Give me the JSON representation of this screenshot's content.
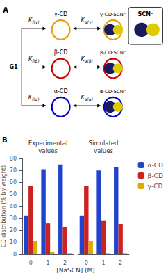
{
  "chart_data": [
    {
      "type": "diagram",
      "annotations": [
        "A",
        "G1",
        "SCN⁻"
      ],
      "colors": [
        "#1a1a5e",
        "#DDCC00"
      ],
      "series": [
        {
          "name": "γ-CD",
          "color": "#E8A000",
          "annotations": [
            "Kf(γ)",
            "Ka(γ)",
            "γ-CD·SCN⁻"
          ]
        },
        {
          "name": "β-CD",
          "color": "#CC0000",
          "annotations": [
            "Kf(β)",
            "Ka(β)",
            "β-CD·SCN⁻"
          ]
        },
        {
          "name": "α-CD",
          "color": "#0000CC",
          "annotations": [
            "Kf(α)",
            "Ka(α)",
            "α-CD·SCN⁻"
          ]
        }
      ]
    },
    {
      "type": "bar",
      "title": "Experimental\nvalues",
      "annotations": [
        "B"
      ],
      "xlabel": "[NaSCN] (M)",
      "ylabel": "CD distribution (% by weight)",
      "categories": [
        "0",
        "1",
        "2"
      ],
      "series": [
        {
          "name": "α-CD",
          "color": "#2244CC",
          "values": [
            32,
            71,
            75
          ]
        },
        {
          "name": "β-CD",
          "color": "#CC2222",
          "values": [
            57,
            26,
            23
          ]
        },
        {
          "name": "γ-CD",
          "color": "#DDAA00",
          "values": [
            11,
            2,
            1
          ]
        }
      ],
      "ylim": [
        0,
        80
      ],
      "yticks": [
        0,
        10,
        20,
        30,
        40,
        50,
        60,
        70,
        80
      ],
      "grid": false
    },
    {
      "type": "bar",
      "title": "Simulated\nvalues",
      "categories": [
        "0",
        "1",
        "2"
      ],
      "series": [
        {
          "name": "α-CD",
          "color": "#2244CC",
          "values": [
            32,
            70,
            73
          ]
        },
        {
          "name": "β-CD",
          "color": "#CC2222",
          "values": [
            57,
            28,
            25
          ]
        },
        {
          "name": "γ-CD",
          "color": "#DDAA00",
          "values": [
            11,
            1,
            1
          ]
        }
      ],
      "ylim": [
        0,
        80
      ],
      "yticks": [
        0,
        10,
        20,
        30,
        40,
        50,
        60,
        70,
        80
      ],
      "grid": false,
      "tick_labels": "x",
      "legend": "right"
    }
  ]
}
